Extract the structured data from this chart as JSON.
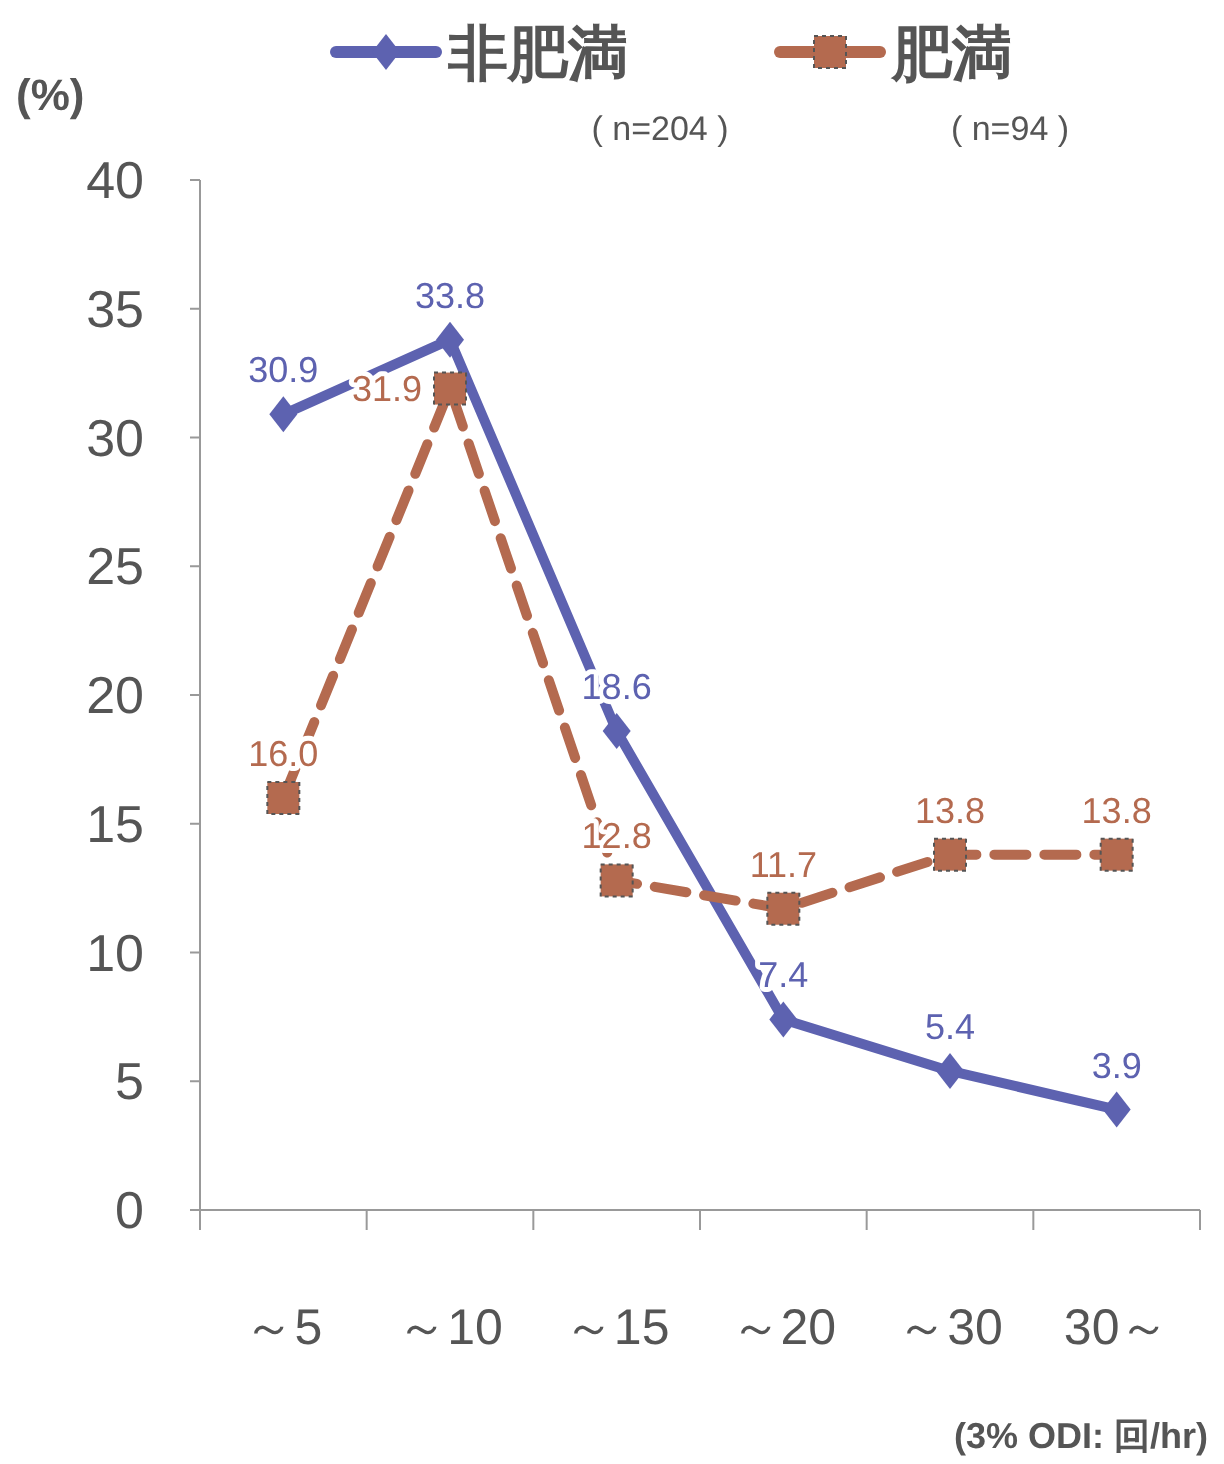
{
  "chart_data": {
    "type": "line",
    "ylabel": "(%)",
    "xlabel": "(3% ODI: 回/hr)",
    "categories": [
      "～5",
      "～10",
      "～15",
      "～20",
      "～30",
      "30～"
    ],
    "series": [
      {
        "name": "非肥満",
        "color": "#5d62b0",
        "marker": "diamond",
        "line_style": "solid",
        "values": [
          30.9,
          33.8,
          18.6,
          7.4,
          5.4,
          3.9
        ],
        "value_labels": [
          "30.9",
          "33.8",
          "18.6",
          "7.4",
          "5.4",
          "3.9"
        ]
      },
      {
        "name": "肥満",
        "color": "#b46a4f",
        "marker": "square",
        "line_style": "dashed",
        "values": [
          16.0,
          31.9,
          12.8,
          11.7,
          13.8,
          13.8
        ],
        "value_labels": [
          "16.0",
          "31.9",
          "12.8",
          "11.7",
          "13.8",
          "13.8"
        ]
      }
    ],
    "annotations": [
      "( n=204 )",
      "( n=94 )"
    ],
    "ylim": [
      0,
      40
    ],
    "yticks": [
      0,
      5,
      10,
      15,
      20,
      25,
      30,
      35,
      40
    ],
    "legend": "top",
    "grid": false
  }
}
